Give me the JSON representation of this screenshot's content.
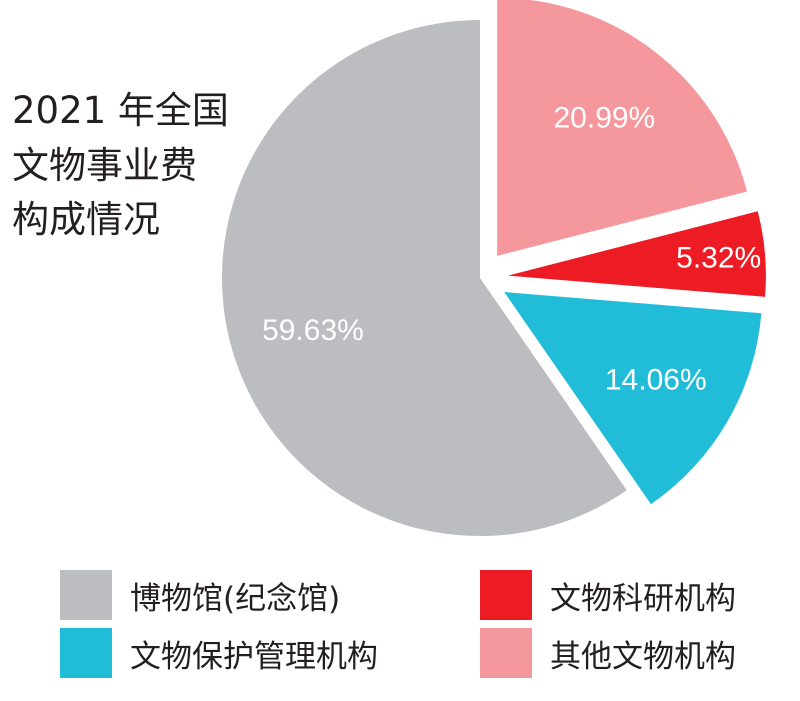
{
  "title": {
    "lines": [
      "2021 年全国",
      "文物事业费",
      "构成情况"
    ]
  },
  "chart_data": {
    "type": "pie",
    "slices": [
      {
        "name": "其他文物机构",
        "value": 20.99,
        "label": "20.99%",
        "color": "#f4989d",
        "exploded": true
      },
      {
        "name": "文物科研机构",
        "value": 5.32,
        "label": "5.32%",
        "color": "#ed1c24",
        "exploded": true
      },
      {
        "name": "文物保护管理机构",
        "value": 14.06,
        "label": "14.06%",
        "color": "#21bcd8",
        "exploded": true
      },
      {
        "name": "博物馆(纪念馆)",
        "value": 59.63,
        "label": "59.63%",
        "color": "#bcbdc1",
        "exploded": false
      }
    ],
    "legend": {
      "placement": "bottom",
      "items": [
        {
          "label": "博物馆(纪念馆)",
          "color": "#bcbdc1"
        },
        {
          "label": "文物科研机构",
          "color": "#ed1c24"
        },
        {
          "label": "文物保护管理机构",
          "color": "#21bcd8"
        },
        {
          "label": "其他文物机构",
          "color": "#f4989d"
        }
      ]
    }
  }
}
